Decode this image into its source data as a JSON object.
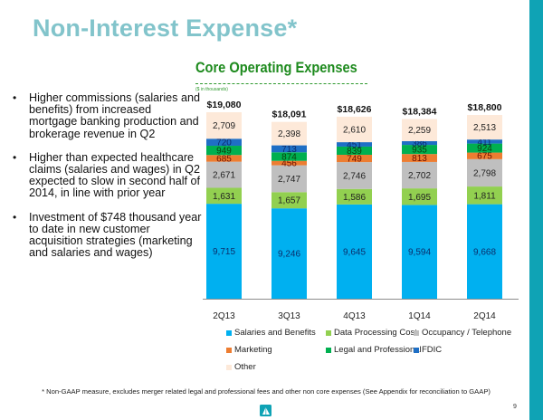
{
  "slide": {
    "title": "Non-Interest Expense*",
    "bullets": [
      "Higher commissions (salaries and benefits) from increased mortgage banking production and brokerage revenue in Q2",
      "Higher than expected healthcare claims (salaries and wages) in Q2 expected to slow in second half of 2014, in line with prior year",
      "Investment of $748 thousand year to date in new customer acquisition strategies (marketing and salaries and wages)"
    ],
    "bullet_char": "•",
    "footnote": "* Non-GAAP measure, excludes merger related legal and professional fees and other non core expenses (See Appendix for reconciliation to GAAP)",
    "page_number": "9",
    "logo_icon": "sailboat-logo-icon",
    "accent_color": "#0fa3b5",
    "title_color": "#82c4cb"
  },
  "chart_data": {
    "type": "bar",
    "stacked": true,
    "title": "Core Operating Expenses",
    "subtitle": "($ in thousands)",
    "xlabel": "",
    "ylabel": "",
    "categories": [
      "2Q13",
      "3Q13",
      "4Q13",
      "1Q14",
      "2Q14"
    ],
    "totals": [
      19080,
      18091,
      18626,
      18384,
      18800
    ],
    "total_labels": [
      "$19,080",
      "$18,091",
      "$18,626",
      "$18,384",
      "$18,800"
    ],
    "series": [
      {
        "name": "Salaries and Benefits",
        "color": "#00b0f0",
        "values": [
          9715,
          9246,
          9645,
          9594,
          9668
        ]
      },
      {
        "name": "Data Processing Cost",
        "color": "#92d050",
        "values": [
          1631,
          1657,
          1586,
          1695,
          1811
        ]
      },
      {
        "name": "Occupancy / Telephone",
        "color": "#bfbfbf",
        "values": [
          2671,
          2747,
          2746,
          2702,
          2798
        ]
      },
      {
        "name": "Marketing",
        "color": "#ed7d31",
        "values": [
          685,
          456,
          749,
          813,
          675
        ]
      },
      {
        "name": "Legal and Professional",
        "color": "#00b050",
        "values": [
          949,
          874,
          839,
          935,
          924
        ]
      },
      {
        "name": "FDIC",
        "color": "#1f6fc5",
        "values": [
          720,
          713,
          451,
          386,
          411
        ]
      },
      {
        "name": "Other",
        "color": "#fde9d9",
        "values": [
          2709,
          2398,
          2610,
          2259,
          2513
        ]
      }
    ],
    "legend_order": [
      "Salaries and Benefits",
      "Data Processing Cost",
      "Occupancy / Telephone",
      "Marketing",
      "Legal and Professional",
      "FDIC",
      "Other"
    ],
    "legend_position": "bottom",
    "grid": false,
    "ylim": [
      0,
      19080
    ]
  }
}
